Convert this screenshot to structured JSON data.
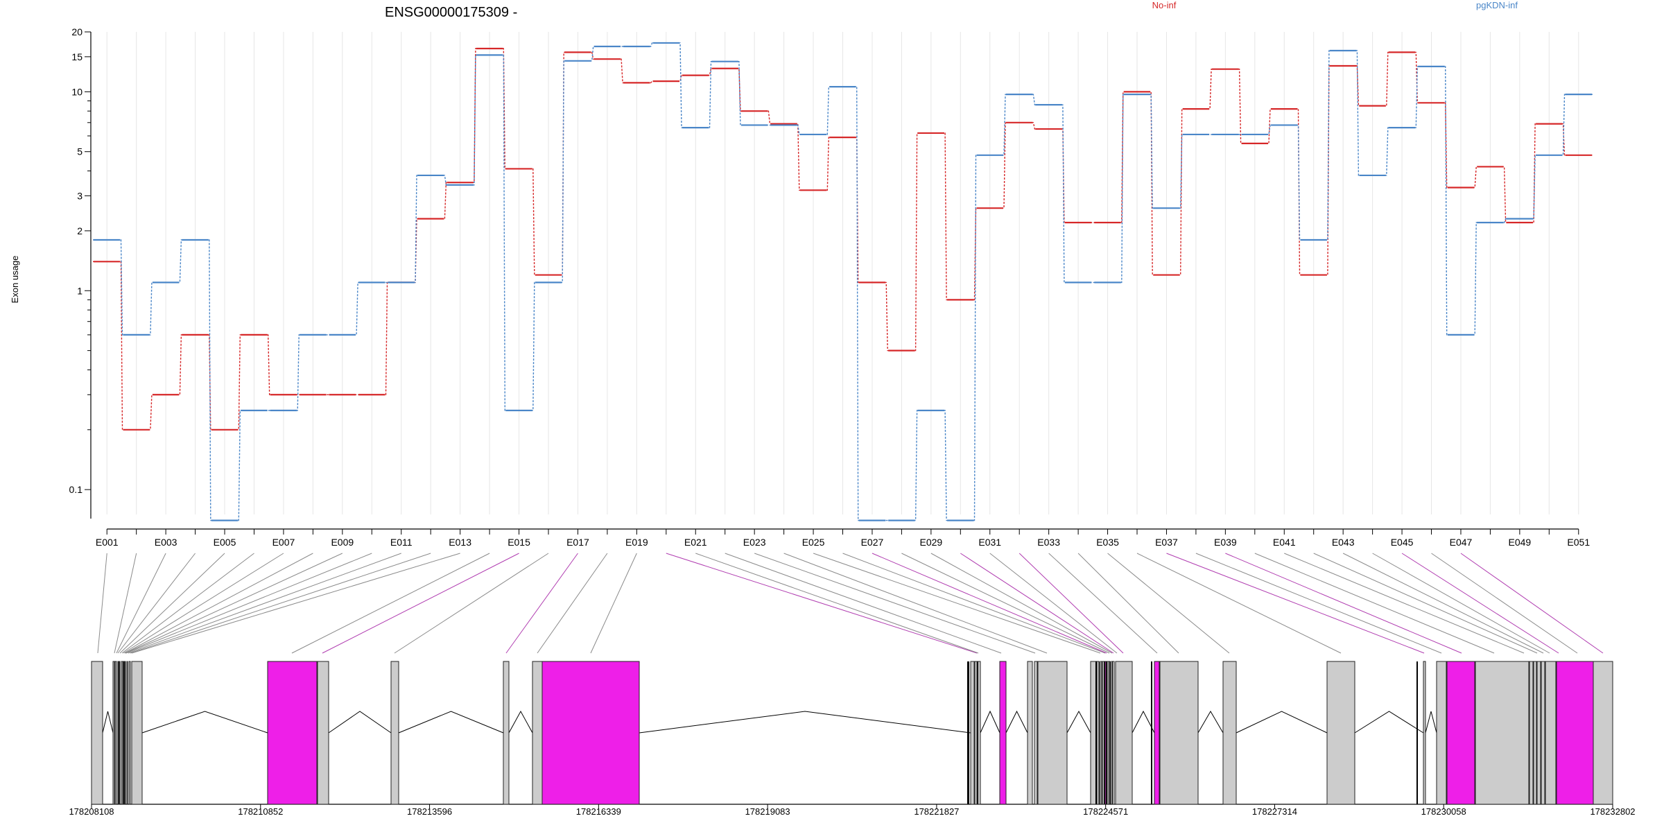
{
  "chart_data": {
    "type": "line",
    "title": "ENSG00000175309 -",
    "ylabel": "Exon usage",
    "y_scale": "log",
    "ylim": [
      0.075,
      20
    ],
    "y_ticks": [
      {
        "v": 0.1,
        "label": "0.1"
      },
      {
        "v": 1,
        "label": "1"
      },
      {
        "v": 2,
        "label": "2"
      },
      {
        "v": 3,
        "label": "3"
      },
      {
        "v": 5,
        "label": "5"
      },
      {
        "v": 10,
        "label": "10"
      },
      {
        "v": 15,
        "label": "15"
      },
      {
        "v": 20,
        "label": "20"
      }
    ],
    "categories": [
      "E001",
      "E002",
      "E003",
      "E004",
      "E005",
      "E006",
      "E007",
      "E008",
      "E009",
      "E010",
      "E011",
      "E012",
      "E013",
      "E014",
      "E015",
      "E016",
      "E017",
      "E018",
      "E019",
      "E020",
      "E021",
      "E022",
      "E023",
      "E024",
      "E025",
      "E026",
      "E027",
      "E028",
      "E029",
      "E030",
      "E031",
      "E032",
      "E033",
      "E034",
      "E035",
      "E036",
      "E037",
      "E038",
      "E039",
      "E040",
      "E041",
      "E042",
      "E043",
      "E044",
      "E045",
      "E046",
      "E047",
      "E048",
      "E049",
      "E050",
      "E051"
    ],
    "labeled_categories": [
      "E001",
      "E003",
      "E005",
      "E007",
      "E009",
      "E011",
      "E013",
      "E015",
      "E017",
      "E019",
      "E021",
      "E023",
      "E025",
      "E027",
      "E029",
      "E031",
      "E033",
      "E035",
      "E037",
      "E039",
      "E041",
      "E043",
      "E045",
      "E047",
      "E049",
      "E051"
    ],
    "series": [
      {
        "name": "No-inf",
        "color": "#d62728",
        "values": [
          1.4,
          0.2,
          0.3,
          0.6,
          0.2,
          0.6,
          0.3,
          0.3,
          0.3,
          0.3,
          1.1,
          2.3,
          3.5,
          16.5,
          4.1,
          1.2,
          15.8,
          14.6,
          11.1,
          11.3,
          12.1,
          13.1,
          8.0,
          6.9,
          3.2,
          5.9,
          1.1,
          0.5,
          6.2,
          0.9,
          2.6,
          7.0,
          6.5,
          2.2,
          2.2,
          10.0,
          1.2,
          8.2,
          13.0,
          5.5,
          8.2,
          1.2,
          13.5,
          8.5,
          15.8,
          8.8,
          3.3,
          4.2,
          2.2,
          6.9,
          4.8
        ]
      },
      {
        "name": "pgKDN-inf",
        "color": "#4a86c8",
        "values": [
          1.8,
          0.6,
          1.1,
          1.8,
          0.07,
          0.25,
          0.25,
          0.6,
          0.6,
          1.1,
          1.1,
          3.8,
          3.4,
          15.3,
          0.25,
          1.1,
          14.3,
          16.9,
          16.9,
          17.6,
          6.6,
          14.2,
          6.8,
          6.8,
          6.1,
          10.6,
          0.07,
          0.07,
          0.25,
          0.07,
          4.8,
          9.7,
          8.6,
          1.1,
          1.1,
          9.7,
          2.6,
          6.1,
          6.1,
          6.1,
          6.8,
          1.8,
          16.1,
          3.8,
          6.6,
          13.4,
          0.6,
          2.2,
          2.3,
          4.8,
          9.7
        ]
      }
    ],
    "legend": [
      {
        "label": "No-inf",
        "color": "#d62728"
      },
      {
        "label": "pgKDN-inf",
        "color": "#4a86c8"
      }
    ],
    "gene_track": {
      "axis_labels": [
        "178208108",
        "178210852",
        "178213596",
        "178216339",
        "178219083",
        "178221827",
        "178224571",
        "178227314",
        "178230058",
        "178232802"
      ],
      "highlight_color": "#ee1fe8",
      "exon_color": "#cccccc",
      "highlighted_exons": [
        "E015",
        "E017",
        "E020",
        "E027",
        "E030",
        "E032",
        "E037",
        "E039",
        "E045",
        "E047",
        "E051"
      ]
    }
  }
}
